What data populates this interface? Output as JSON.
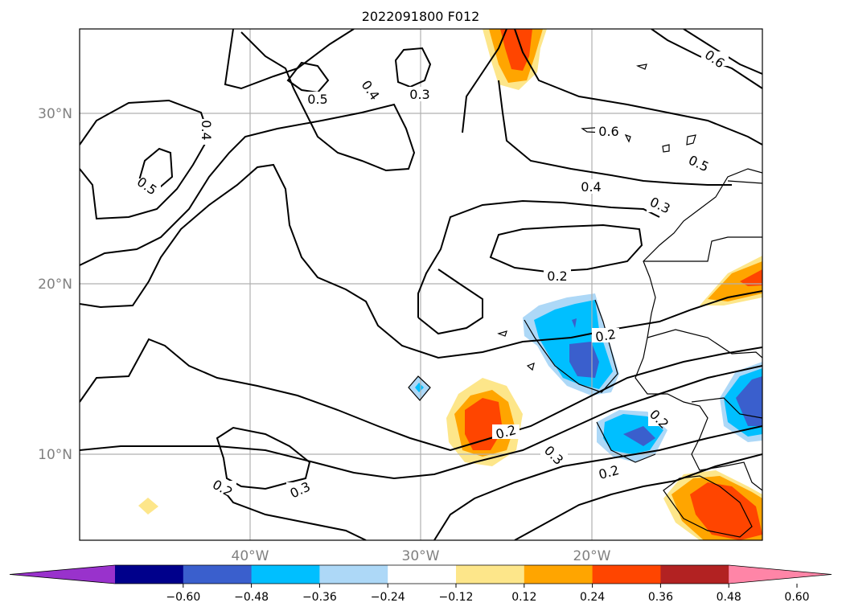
{
  "title": "2022091800 F012",
  "latitude_labels": [
    "30°N",
    "20°N",
    "10°N"
  ],
  "longitude_labels": [
    "40°W",
    "30°W",
    "20°W"
  ],
  "contour_labels": [
    "0.6",
    "0.6",
    "0.5",
    "0.5",
    "0.5",
    "0.4",
    "0.4",
    "0.4",
    "0.3",
    "0.3",
    "0.3",
    "0.3",
    "0.2",
    "0.2",
    "0.2",
    "0.2",
    "0.2",
    "0.2"
  ],
  "colorbar": {
    "ticks": [
      "−0.60",
      "−0.48",
      "−0.36",
      "−0.24",
      "−0.12",
      "0.12",
      "0.24",
      "0.36",
      "0.48",
      "0.60"
    ],
    "colors": [
      "#9932cc",
      "#00008b",
      "#3a5fcd",
      "#00bfff",
      "#add8f7",
      "#ffffff",
      "#fde68a",
      "#ffa500",
      "#ff4500",
      "#b22222",
      "#ff85a7"
    ]
  }
}
